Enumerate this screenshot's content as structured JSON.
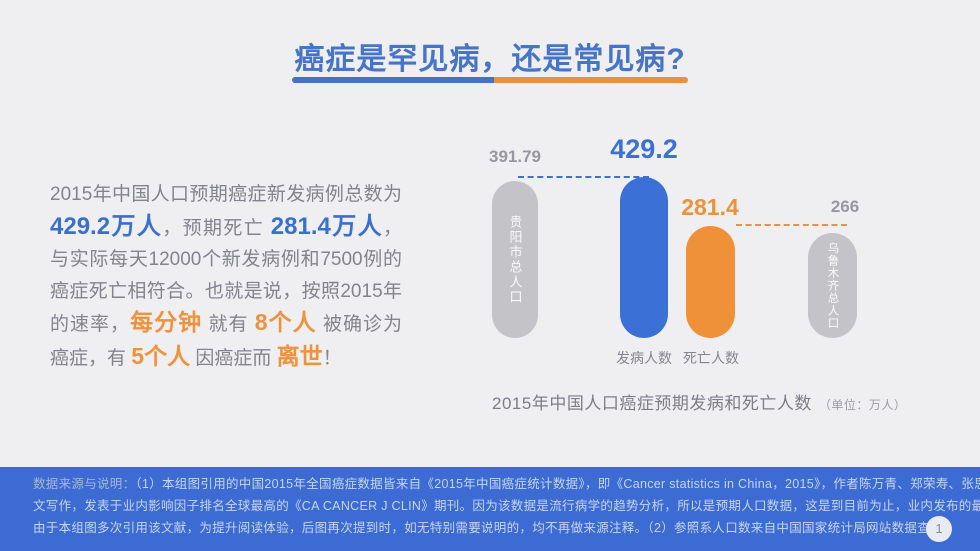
{
  "title": {
    "text": "癌症是罕见病，还是常见病?"
  },
  "colors": {
    "accent_blue": "#3B70D6",
    "accent_orange": "#EE9138",
    "bar_gray": "#C4C4C8",
    "background": "#EFEFF2",
    "footer_background": "#3C6CD3",
    "title_blue": "#4574C8"
  },
  "intro": {
    "segments": [
      {
        "text": "2015年中国人口预期癌症新发病例总数为",
        "style": "normal"
      },
      {
        "text": "429.2万人",
        "style": "blue"
      },
      {
        "text": "，预期死亡 ",
        "style": "normal"
      },
      {
        "text": "281.4万人",
        "style": "blue"
      },
      {
        "text": "，与实际每天12000个新发病例和7500例的癌症死亡相符合。也就是说，按照2015年的速率，",
        "style": "normal"
      },
      {
        "text": "每分钟",
        "style": "orange"
      },
      {
        "text": " 就有 ",
        "style": "normal"
      },
      {
        "text": "8个人",
        "style": "orange"
      },
      {
        "text": " 被确诊为癌症，有 ",
        "style": "normal"
      },
      {
        "text": "5个人",
        "style": "orange"
      },
      {
        "text": " 因癌症而 ",
        "style": "normal"
      },
      {
        "text": "离世",
        "style": "orange"
      },
      {
        "text": "！",
        "style": "normal"
      }
    ]
  },
  "chart": {
    "bars": [
      {
        "label": "贵阳市总人口",
        "value_label": "391.79"
      },
      {
        "label": "",
        "value_label": "429.2"
      },
      {
        "label": "",
        "value_label": "281.4"
      },
      {
        "label": "乌鲁木齐总人口",
        "value_label": "266"
      }
    ],
    "x_labels": [
      "发病人数",
      "死亡人数"
    ],
    "caption": "2015年中国人口癌症预期发病和死亡人数",
    "caption_unit": "（单位：万人）"
  },
  "chart_data": {
    "type": "bar",
    "categories": [
      "贵阳市总人口",
      "发病人数",
      "死亡人数",
      "乌鲁木齐总人口"
    ],
    "values": [
      391.79,
      429.2,
      281.4,
      266
    ],
    "series_colors": [
      "#C4C4C8",
      "#3B70D6",
      "#EE9138",
      "#C4C4C8"
    ],
    "title": "2015年中国人口癌症预期发病和死亡人数",
    "unit": "万人",
    "xlabel": "",
    "ylabel": "",
    "ylim": [
      0,
      429.2
    ],
    "grid": false,
    "legend": false,
    "annotations": [
      {
        "bar": "贵阳市总人口",
        "value_label": "391.79",
        "reference_dash_to": "发病人数",
        "dash_color": "#3B70D6"
      },
      {
        "bar": "死亡人数",
        "value_label": "281.4",
        "reference_dash_to": "乌鲁木齐总人口",
        "dash_color": "#EE9138"
      }
    ]
  },
  "footer": {
    "label": "数据来源与说明：",
    "line1": "（1）本组图引用的中国2015年全国癌症数据皆来自《2015年中国癌症统计数据》，即《Cancer statistics in China，2015》，作者陈万青、郑荣寿、张思维等，原文为英",
    "line2": "文写作，发表于业内影响因子排名全球最高的《CA CANCER J CLIN》期刊。因为该数据是流行病学的趋势分析，所以是预期人口数据，这是到目前为止，业内发布的最新全国数据。",
    "line3": "由于本组图多次引用该文献，为提升阅读体验，后图再次提到时，如无特别需要说明的，均不再做来源注释。（2）参照系人口数来自中国国家统计局网站数据查询。",
    "page_number": "1"
  }
}
